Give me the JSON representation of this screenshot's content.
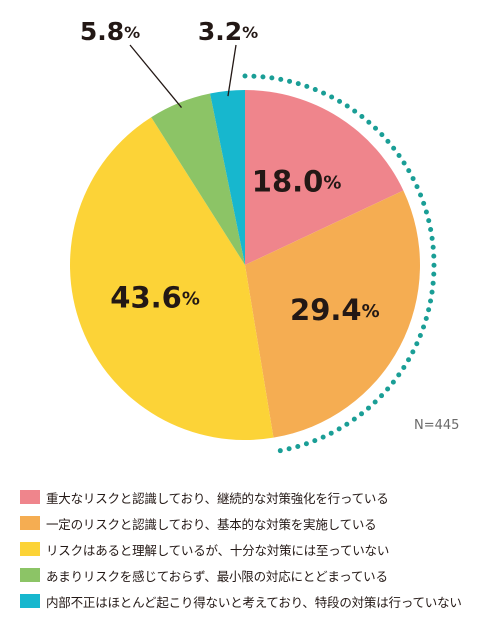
{
  "chart_data": {
    "type": "pie",
    "categories": [
      "重大なリスクと認識しており、継続的な対策強化を行っている",
      "一定のリスクと認識しており、基本的な対策を実施している",
      "リスクはあると理解しているが、十分な対策には至っていない",
      "あまりリスクを感じておらず、最小限の対応にとどまっている",
      "内部不正はほとんど起こり得ないと考えており、特段の対策は行っていない"
    ],
    "values": [
      18.0,
      29.4,
      43.6,
      5.8,
      3.2
    ],
    "labels": [
      "18.0%",
      "29.4%",
      "43.6%",
      "5.8%",
      "3.2%"
    ],
    "colors": [
      "#ef858c",
      "#f5ad52",
      "#fcd337",
      "#8cc466",
      "#17b7ce"
    ],
    "highlight_color": "#1a9e96",
    "sample_size": "N=445",
    "legend_position": "bottom"
  }
}
